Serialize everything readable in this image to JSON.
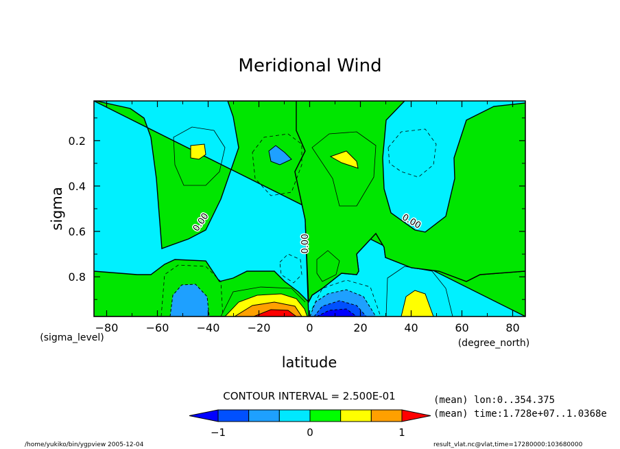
{
  "chart_data": {
    "type": "contour",
    "title": "Meridional Wind",
    "xlabel": "latitude",
    "ylabel": "sigma",
    "x_unit": "(degree_north)",
    "y_unit": "(sigma_level)",
    "xlim": [
      -85,
      85
    ],
    "ylim": [
      0.025,
      0.975
    ],
    "y_inverted": true,
    "x_ticks": [
      -80,
      -60,
      -40,
      -20,
      0,
      20,
      40,
      60,
      80
    ],
    "y_ticks": [
      0.2,
      0.4,
      0.6,
      0.8
    ],
    "contour_interval": 0.25,
    "contour_label": "0.00",
    "contour_interval_text": "CONTOUR INTERVAL = 2.500E-01",
    "colorbar": {
      "levels": [
        -1.25,
        -1.0,
        -0.75,
        -0.5,
        -0.25,
        0.0,
        0.25,
        0.5,
        0.75,
        1.0,
        1.25
      ],
      "tick_values": [
        -1,
        0,
        1
      ],
      "colors": [
        "#0000ff",
        "#0050ff",
        "#1ea0ff",
        "#00e8ff",
        "#00ff00",
        "#ffff00",
        "#ffa000",
        "#ff0000"
      ]
    },
    "colors": {
      "zero_to_pos": "#00e600",
      "weak_neg": "#00f0ff",
      "pos_0_5": "#ffff00",
      "pos_0_75": "#ffa000",
      "pos_1_0": "#ff0000",
      "neg_0_25": "#1ea0ff",
      "neg_0_5": "#0050ff",
      "neg_0_75": "#0000ff"
    },
    "info": {
      "mean_lon": "(mean) lon:0..354.375",
      "mean_time": "(mean) time:1.728e+07..1.0368e"
    }
  },
  "footer": {
    "left": "/home/yukiko/bin/ygpview  2005-12-04",
    "right": "result_vlat.nc@vlat,time=17280000:103680000"
  }
}
